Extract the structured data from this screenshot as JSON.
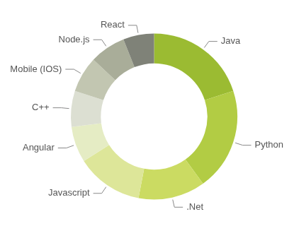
{
  "chart_data": {
    "type": "doughnut",
    "categories": [
      "Java",
      "Python",
      ".Net",
      "Javascript",
      "Angular",
      "C++",
      "Mobile (IOS)",
      "Node.js",
      "React"
    ],
    "values": [
      20,
      20,
      13,
      13,
      7,
      7,
      7,
      7,
      6
    ],
    "colors": [
      "#9bbb32",
      "#b2cc44",
      "#cbdb62",
      "#dde699",
      "#e5ecc4",
      "#dcdfd2",
      "#c2c6b1",
      "#a9ad99",
      "#7f8278"
    ]
  }
}
